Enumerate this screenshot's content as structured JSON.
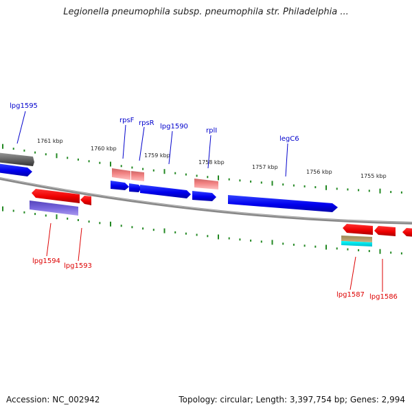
{
  "title": "Legionella pneumophila subsp. pneumophila str. Philadelphia ...",
  "footer": {
    "accession": "Accession: NC_002942",
    "stats": "Topology: circular; Length: 3,397,754 bp; Genes: 2,994"
  },
  "colors": {
    "backbone": "#777777",
    "tick": "#228822",
    "forward_gene": "#0000ee",
    "reverse_gene": "#ee0000",
    "label_forward": "#0000cc",
    "label_reverse": "#dd0000",
    "rna_pink": "#f08080",
    "gray_feature": "#666666",
    "purple_feature": "#7766dd",
    "tan_feature": "#bba070",
    "cyan_feature": "#00dddd"
  },
  "kbp_labels": [
    "1761 kbp",
    "1760 kbp",
    "1759 kbp",
    "1758 kbp",
    "1757 kbp",
    "1756 kbp",
    "1755 kbp"
  ],
  "gene_labels_top": [
    "lpg1595",
    "rpsF",
    "rpsR",
    "lpg1590",
    "rplI",
    "legC6"
  ],
  "gene_labels_bottom": [
    "lpg1594",
    "lpg1593",
    "lpg1587",
    "lpg1586"
  ]
}
